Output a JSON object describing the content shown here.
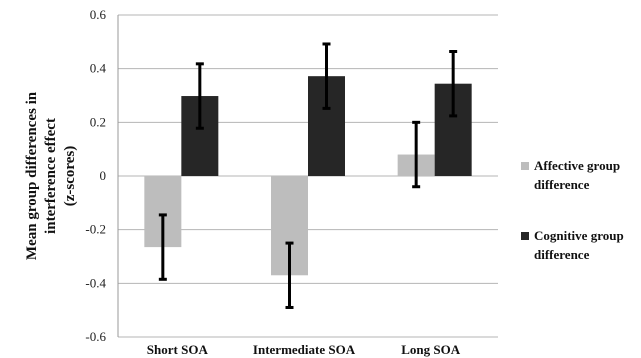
{
  "chart_data": {
    "type": "bar",
    "title": "",
    "ylabel": [
      "Mean group differences in",
      "interference effect",
      "(z-scores)"
    ],
    "xlabel": "",
    "categories": [
      "Short SOA",
      "Intermediate SOA",
      "Long SOA"
    ],
    "ylim": [
      -0.6,
      0.6
    ],
    "yticks": [
      "0.6",
      "0.4",
      "0.2",
      "0",
      "-0.2",
      "-0.4",
      "-0.6"
    ],
    "grid": true,
    "legend_position": "right",
    "series": [
      {
        "name": [
          "Affective group",
          "difference"
        ],
        "color": "#bdbdbd",
        "values": [
          -0.265,
          -0.37,
          0.08
        ],
        "error": [
          0.12,
          0.12,
          0.12
        ]
      },
      {
        "name": [
          "Cognitive group",
          "difference"
        ],
        "color": "#262626",
        "values": [
          0.298,
          0.372,
          0.344
        ],
        "error": [
          0.12,
          0.12,
          0.12
        ]
      }
    ]
  }
}
